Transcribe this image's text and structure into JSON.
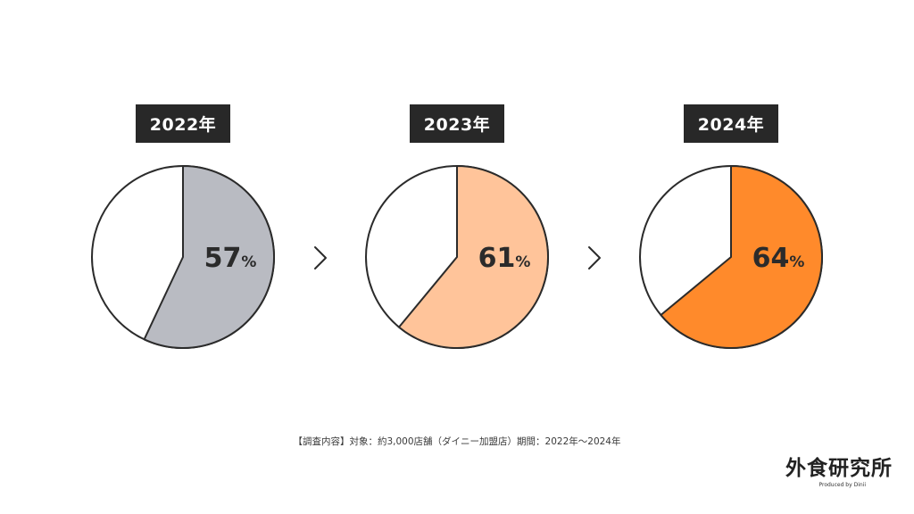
{
  "chart_data": [
    {
      "type": "pie",
      "year_label": "2022年",
      "value": 57,
      "percent_number": "57",
      "percent_unit": "%",
      "color": "#b9bbc2",
      "remainder_color": "#ffffff"
    },
    {
      "type": "pie",
      "year_label": "2023年",
      "value": 61,
      "percent_number": "61",
      "percent_unit": "%",
      "color": "#ffc49a",
      "remainder_color": "#ffffff"
    },
    {
      "type": "pie",
      "year_label": "2024年",
      "value": 64,
      "percent_number": "64",
      "percent_unit": "%",
      "color": "#ff8a2b",
      "remainder_color": "#ffffff"
    }
  ],
  "arrow_icon": "chevron-right-icon",
  "footnote": "【調査内容】対象：約3,000店舗（ダイニー加盟店）期間：2022年〜2024年",
  "logo": {
    "main": "外食研究所",
    "sub": "Produced by Dinii"
  }
}
